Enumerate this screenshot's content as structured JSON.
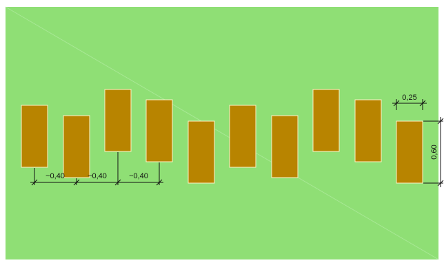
{
  "colors": {
    "background": "#ffffff",
    "lawn": "#8fdf75",
    "lawn_stroke": "#a8e895",
    "stone_fill": "#b88400",
    "stone_stroke": "#fff2c7",
    "dimension_line": "#111111"
  },
  "diagram": {
    "stone_count": 10,
    "stone_offsets": [
      "low",
      "lower",
      "high",
      "mid",
      "lowest",
      "low",
      "lower",
      "high",
      "mid",
      "lowest"
    ]
  },
  "dimensions": {
    "spacing_label_1": "~0,40",
    "spacing_label_2": "~0,40",
    "spacing_label_3": "~0,40",
    "width_label": "0,25",
    "height_label": "0,60"
  }
}
